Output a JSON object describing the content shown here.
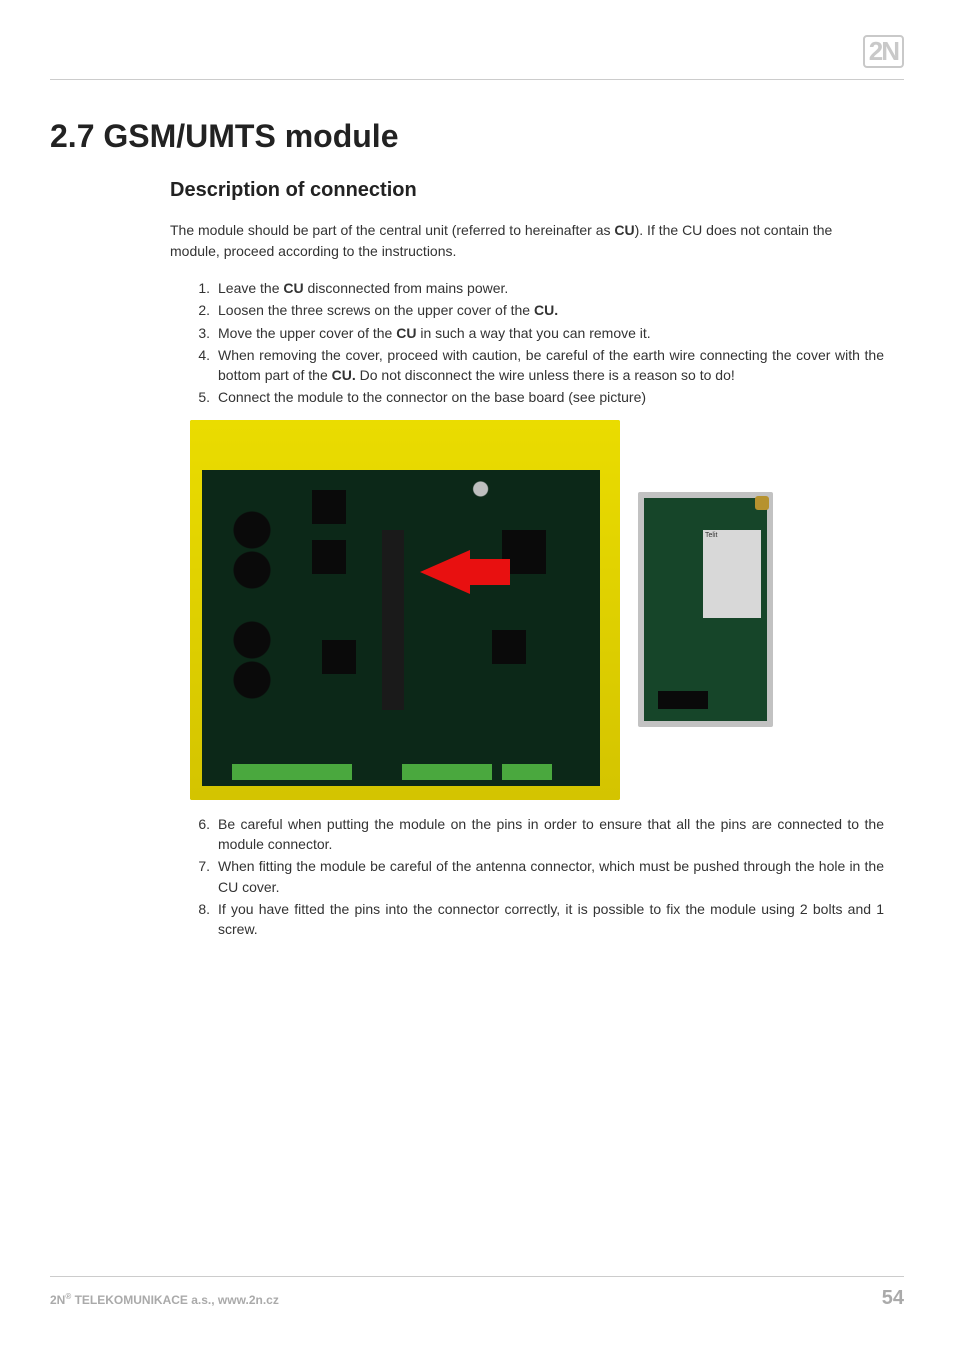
{
  "logo_text": "2N",
  "title": "2.7 GSM/UMTS module",
  "subtitle": "Description of connection",
  "intro_pre": "The module should be part of the central unit (referred to hereinafter as ",
  "intro_bold1": "CU",
  "intro_post": "). If the CU does not contain the module, proceed according to the instructions.",
  "steps_a": [
    {
      "n": "1.",
      "pre": "Leave the ",
      "b": "CU",
      "post": " disconnected from mains power."
    },
    {
      "n": "2.",
      "pre": "Loosen the three screws on the upper cover of the ",
      "b": "CU.",
      "post": ""
    },
    {
      "n": "3.",
      "pre": "Move the upper cover of the ",
      "b": "CU",
      "post": " in such a way that you can remove it."
    },
    {
      "n": "4.",
      "pre": "When removing the cover, proceed with caution, be careful of the earth wire connecting the cover with the bottom part of the ",
      "b": "CU.",
      "post": " Do not disconnect the wire unless there is a reason so to do!",
      "justify": true
    },
    {
      "n": "5.",
      "pre": "Connect the module to the connector on the base board (see picture)",
      "b": "",
      "post": ""
    }
  ],
  "steps_b": [
    {
      "n": "6.",
      "txt": "Be careful when putting the module on the pins in order to ensure that all the pins are connected to the module connector.",
      "justify": true
    },
    {
      "n": "7.",
      "txt": "When fitting the module be careful of the antenna connector, which must be pushed through the hole in the CU cover.",
      "justify": true
    },
    {
      "n": "8.",
      "txt": "If you have fitted the pins into the connector correctly, it is possible to fix the module using 2 bolts and 1 screw.",
      "justify": true
    }
  ],
  "modem_label": "Telit",
  "footer_left_pre": "2N",
  "footer_left_sup": "®",
  "footer_left_post": " TELEKOMUNIKACE a.s., www.2n.cz",
  "page_number": "54",
  "image": {
    "big": {
      "enclosure_color": "#d6c500",
      "pcb_color": "#154428",
      "arrow_color": "#e81010"
    },
    "small": {
      "bg": "#c2c2c2",
      "pcb_color": "#164529",
      "modem_color": "#d8d8d8",
      "ant_color": "#b6922f"
    }
  }
}
